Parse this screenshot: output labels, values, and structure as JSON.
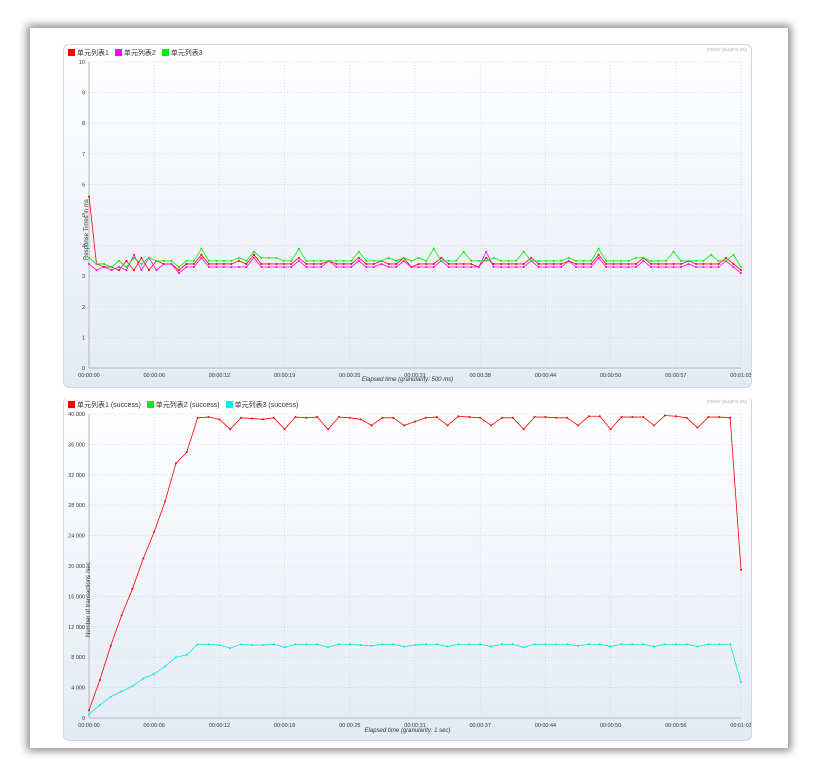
{
  "chart_data": [
    {
      "type": "line",
      "title": "",
      "watermark": "jmeter-plugins.org",
      "ylabel": "Response Times in ms",
      "xlabel": "Elapsed time (granularity: 500 ms)",
      "ylim": [
        0,
        10
      ],
      "yticks": [
        "0",
        "1",
        "2",
        "3",
        "4",
        "5",
        "6",
        "7",
        "8",
        "9",
        "10"
      ],
      "xticks": [
        "00:00:00",
        "00:00:06",
        "00:00:12",
        "00:00:19",
        "00:00:25",
        "00:00:31",
        "00:00:38",
        "00:00:44",
        "00:00:50",
        "00:00:57",
        "00:01:03"
      ],
      "series": [
        {
          "name": "单元列表1",
          "color": "#ff0000",
          "values": [
            5.6,
            3.4,
            3.3,
            3.3,
            3.2,
            3.5,
            3.2,
            3.6,
            3.2,
            3.5,
            3.4,
            3.4,
            3.2,
            3.4,
            3.4,
            3.7,
            3.4,
            3.4,
            3.4,
            3.4,
            3.5,
            3.4,
            3.7,
            3.4,
            3.4,
            3.4,
            3.4,
            3.4,
            3.6,
            3.4,
            3.4,
            3.4,
            3.5,
            3.4,
            3.4,
            3.4,
            3.6,
            3.4,
            3.4,
            3.5,
            3.4,
            3.4,
            3.6,
            3.3,
            3.4,
            3.4,
            3.4,
            3.6,
            3.4,
            3.4,
            3.4,
            3.4,
            3.3,
            3.6,
            3.4,
            3.4,
            3.4,
            3.4,
            3.4,
            3.6,
            3.4,
            3.4,
            3.4,
            3.4,
            3.5,
            3.4,
            3.4,
            3.4,
            3.7,
            3.4,
            3.4,
            3.4,
            3.4,
            3.4,
            3.6,
            3.4,
            3.4,
            3.4,
            3.4,
            3.4,
            3.5,
            3.4,
            3.4,
            3.4,
            3.4,
            3.6,
            3.4,
            3.2
          ]
        },
        {
          "name": "单元列表2",
          "color": "#ff00ff",
          "values": [
            3.4,
            3.2,
            3.3,
            3.2,
            3.3,
            3.2,
            3.7,
            3.2,
            3.6,
            3.2,
            3.4,
            3.4,
            3.1,
            3.3,
            3.3,
            3.6,
            3.3,
            3.3,
            3.3,
            3.3,
            3.3,
            3.3,
            3.6,
            3.3,
            3.3,
            3.3,
            3.3,
            3.3,
            3.5,
            3.3,
            3.3,
            3.3,
            3.5,
            3.3,
            3.3,
            3.3,
            3.5,
            3.3,
            3.3,
            3.4,
            3.3,
            3.3,
            3.5,
            3.3,
            3.3,
            3.3,
            3.3,
            3.5,
            3.3,
            3.3,
            3.3,
            3.3,
            3.3,
            3.8,
            3.3,
            3.3,
            3.3,
            3.3,
            3.3,
            3.5,
            3.3,
            3.3,
            3.3,
            3.3,
            3.5,
            3.3,
            3.3,
            3.3,
            3.6,
            3.3,
            3.3,
            3.3,
            3.3,
            3.3,
            3.5,
            3.3,
            3.3,
            3.3,
            3.3,
            3.3,
            3.4,
            3.3,
            3.3,
            3.3,
            3.3,
            3.5,
            3.3,
            3.1
          ]
        },
        {
          "name": "单元列表3",
          "color": "#00ee00",
          "values": [
            3.6,
            3.4,
            3.4,
            3.3,
            3.5,
            3.3,
            3.6,
            3.4,
            3.6,
            3.5,
            3.5,
            3.5,
            3.3,
            3.5,
            3.5,
            3.9,
            3.5,
            3.5,
            3.5,
            3.5,
            3.6,
            3.5,
            3.8,
            3.6,
            3.6,
            3.6,
            3.5,
            3.5,
            3.9,
            3.5,
            3.5,
            3.5,
            3.5,
            3.5,
            3.5,
            3.5,
            3.8,
            3.5,
            3.5,
            3.5,
            3.6,
            3.5,
            3.6,
            3.5,
            3.6,
            3.5,
            3.9,
            3.5,
            3.5,
            3.5,
            3.8,
            3.5,
            3.5,
            3.5,
            3.6,
            3.5,
            3.5,
            3.5,
            3.8,
            3.5,
            3.5,
            3.5,
            3.5,
            3.5,
            3.6,
            3.5,
            3.5,
            3.5,
            3.9,
            3.5,
            3.5,
            3.5,
            3.5,
            3.6,
            3.6,
            3.5,
            3.5,
            3.5,
            3.8,
            3.5,
            3.5,
            3.5,
            3.5,
            3.7,
            3.5,
            3.5,
            3.7,
            3.3
          ]
        }
      ]
    },
    {
      "type": "line",
      "title": "",
      "watermark": "jmeter-plugins.org",
      "ylabel": "Number of transactions /sec",
      "xlabel": "Elapsed time (granularity: 1 sec)",
      "ylim": [
        0,
        40000
      ],
      "yticks": [
        "0",
        "4 000",
        "8 000",
        "12 000",
        "16 000",
        "20 000",
        "24 000",
        "28 000",
        "32 000",
        "36 000",
        "40 000"
      ],
      "xticks": [
        "00:00:00",
        "00:00:06",
        "00:00:12",
        "00:00:18",
        "00:00:25",
        "00:00:31",
        "00:00:37",
        "00:00:44",
        "00:00:50",
        "00:00:56",
        "00:01:03"
      ],
      "series": [
        {
          "name": "单元列表1 (success)",
          "color": "#ff0000",
          "values": [
            1000,
            5000,
            9500,
            13500,
            17000,
            21000,
            24500,
            28500,
            33500,
            35000,
            39500,
            39600,
            39300,
            38000,
            39500,
            39400,
            39300,
            39500,
            38000,
            39600,
            39500,
            39600,
            38000,
            39600,
            39500,
            39300,
            38500,
            39500,
            39500,
            38500,
            39000,
            39500,
            39600,
            38500,
            39700,
            39600,
            39500,
            38500,
            39500,
            39500,
            38000,
            39600,
            39600,
            39500,
            39500,
            38500,
            39700,
            39700,
            38000,
            39600,
            39600,
            39600,
            38500,
            39800,
            39700,
            39500,
            38200,
            39600,
            39600,
            39500,
            19500
          ]
        },
        {
          "name": "单元列表2 (success)",
          "color": "#00ee00",
          "values": []
        },
        {
          "name": "单元列表3 (success)",
          "color": "#00e8e8",
          "values": [
            500,
            1700,
            2800,
            3500,
            4200,
            5200,
            5800,
            6800,
            8000,
            8300,
            9700,
            9700,
            9600,
            9200,
            9700,
            9600,
            9600,
            9700,
            9300,
            9700,
            9700,
            9700,
            9300,
            9700,
            9700,
            9600,
            9500,
            9700,
            9700,
            9400,
            9600,
            9700,
            9700,
            9400,
            9700,
            9700,
            9700,
            9400,
            9700,
            9700,
            9300,
            9700,
            9700,
            9700,
            9700,
            9500,
            9700,
            9700,
            9400,
            9700,
            9700,
            9700,
            9400,
            9700,
            9700,
            9700,
            9400,
            9700,
            9700,
            9700,
            4700
          ]
        }
      ]
    }
  ]
}
